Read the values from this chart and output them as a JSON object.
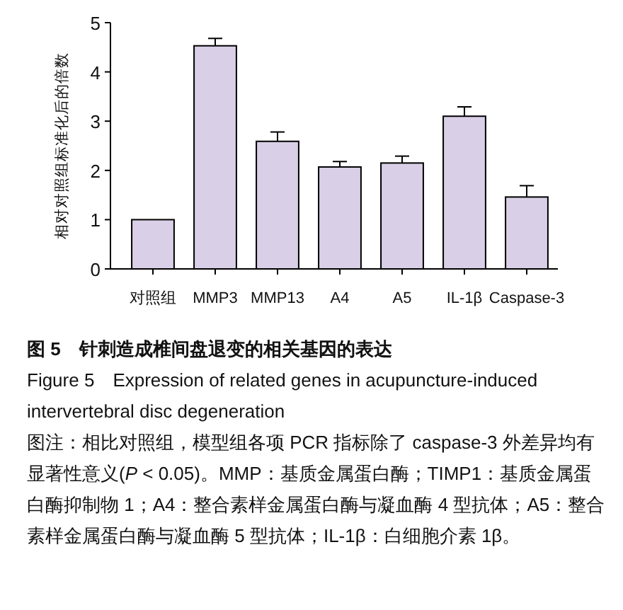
{
  "chart_data": {
    "type": "bar",
    "title": "图 5　针刺造成椎间盘退变的相关基因的表达",
    "subtitle": "Figure 5　Expression of related genes in acupuncture-induced intervertebral disc degeneration",
    "ylabel": "相对对照组标准化后的倍数",
    "categories": [
      "对照组",
      "MMP3",
      "MMP13",
      "A4",
      "A5",
      "IL-1β",
      "Caspase-3"
    ],
    "values": [
      1.0,
      4.53,
      2.59,
      2.07,
      2.15,
      3.1,
      1.46
    ],
    "errors": [
      null,
      [
        4.53,
        4.68
      ],
      [
        2.59,
        2.78
      ],
      [
        2.07,
        2.18
      ],
      [
        2.15,
        2.29
      ],
      [
        3.1,
        3.29
      ],
      [
        1.46,
        1.69
      ]
    ],
    "color": "#d9cfe6",
    "ylim": [
      0,
      5
    ],
    "yticks": [
      0,
      1,
      2,
      3,
      4,
      5
    ],
    "annotations": [
      "图注：相比对照组，模型组各项 PCR 指标除了 caspase-3 外差异均有显著性意义(*P* < 0.05)。MMP：基质金属蛋白酶；TIMP1：基质金属蛋白酶抑制物 1；A4：整合素样金属蛋白酶与凝血酶 4 型抗体；A5：整合素样金属蛋白酶与凝血酶 5 型抗体；IL-1β：白细胞介素 1β。"
    ]
  }
}
